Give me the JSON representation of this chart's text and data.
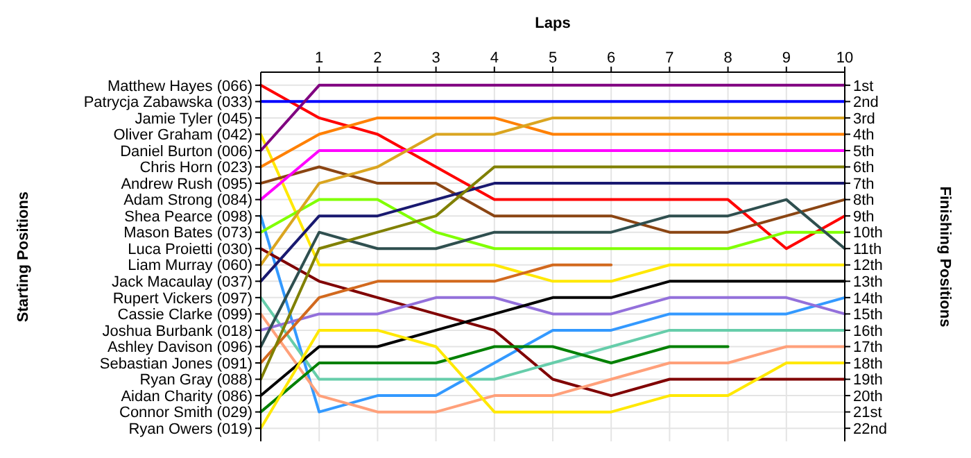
{
  "chart_data": {
    "type": "line",
    "xlabel": "Laps",
    "ylabel": "Finishing Positions",
    "grid": true,
    "x": [
      0,
      1,
      2,
      3,
      4,
      5,
      6,
      7,
      8,
      9,
      10
    ],
    "xlim": [
      0,
      10
    ],
    "xticks": [
      1,
      2,
      3,
      4,
      5,
      6,
      7,
      8,
      9,
      10
    ],
    "ylim": [
      22.8,
      0.2
    ],
    "yticks": [
      {
        "value": 1,
        "label": "1st"
      },
      {
        "value": 2,
        "label": "2nd"
      },
      {
        "value": 3,
        "label": "3rd"
      },
      {
        "value": 4,
        "label": "4th"
      },
      {
        "value": 5,
        "label": "5th"
      },
      {
        "value": 6,
        "label": "6th"
      },
      {
        "value": 7,
        "label": "7th"
      },
      {
        "value": 8,
        "label": "8th"
      },
      {
        "value": 9,
        "label": "9th"
      },
      {
        "value": 10,
        "label": "10th"
      },
      {
        "value": 11,
        "label": "11th"
      },
      {
        "value": 12,
        "label": "12th"
      },
      {
        "value": 13,
        "label": "13th"
      },
      {
        "value": 14,
        "label": "14th"
      },
      {
        "value": 15,
        "label": "15th"
      },
      {
        "value": 16,
        "label": "16th"
      },
      {
        "value": 17,
        "label": "17th"
      },
      {
        "value": 18,
        "label": "18th"
      },
      {
        "value": 19,
        "label": "19th"
      },
      {
        "value": 20,
        "label": "20th"
      },
      {
        "value": 21,
        "label": "21st"
      },
      {
        "value": 22,
        "label": "22nd"
      }
    ],
    "annotations": [
      "Starting Positions",
      "Matthew Hayes (066)",
      "Patrycja Zabawska (033)",
      "Jamie Tyler (045)",
      "Oliver Graham (042)",
      "Daniel Burton (006)",
      "Chris Horn (023)",
      "Andrew Rush (095)",
      "Adam Strong (084)",
      "Shea Pearce (098)",
      "Mason Bates (073)",
      "Luca Proietti (030)",
      "Liam Murray (060)",
      "Jack Macaulay (037)",
      "Rupert Vickers (097)",
      "Cassie Clarke (099)",
      "Joshua Burbank (018)",
      "Ashley Davison (096)",
      "Sebastian Jones (091)",
      "Ryan Gray (088)",
      "Aidan Charity (086)",
      "Connor Smith (029)",
      "Ryan Owers (019)"
    ],
    "series": [
      {
        "color": "#ff0000",
        "values": [
          1,
          3,
          4,
          6,
          8,
          8,
          8,
          8,
          8,
          11,
          9
        ]
      },
      {
        "color": "#0000ff",
        "values": [
          2,
          2,
          2,
          2,
          2,
          2,
          2,
          2,
          2,
          2,
          2
        ]
      },
      {
        "color": "#ffe800",
        "values": [
          4,
          12,
          12,
          12,
          12,
          13,
          13,
          12,
          12,
          12,
          12
        ]
      },
      {
        "color": "#800080",
        "values": [
          5,
          1,
          1,
          1,
          1,
          1,
          1,
          1,
          1,
          1,
          1
        ]
      },
      {
        "color": "#ff8000",
        "values": [
          6,
          4,
          3,
          3,
          3,
          4,
          4,
          4,
          4,
          4,
          4
        ]
      },
      {
        "color": "#8b4513",
        "values": [
          7,
          6,
          7,
          7,
          9,
          9,
          9,
          10,
          10,
          9,
          8
        ]
      },
      {
        "color": "#ff00ff",
        "values": [
          8,
          5,
          5,
          5,
          5,
          5,
          5,
          5,
          5,
          5,
          5
        ]
      },
      {
        "color": "#3399ff",
        "values": [
          9,
          21,
          20,
          20,
          18,
          16,
          16,
          15,
          15,
          15,
          14
        ]
      },
      {
        "color": "#80ff00",
        "values": [
          10,
          8,
          8,
          10,
          11,
          11,
          11,
          11,
          11,
          10,
          10
        ]
      },
      {
        "color": "#800000",
        "values": [
          11,
          13,
          14,
          15,
          16,
          19,
          20,
          19,
          19,
          19,
          19
        ]
      },
      {
        "color": "#daa520",
        "values": [
          12,
          7,
          6,
          4,
          4,
          3,
          3,
          3,
          3,
          3,
          3
        ]
      },
      {
        "color": "#191970",
        "values": [
          13,
          9,
          9,
          8,
          7,
          7,
          7,
          7,
          7,
          7,
          7
        ]
      },
      {
        "color": "#66cdaa",
        "values": [
          14,
          19,
          19,
          19,
          19,
          18,
          17,
          16,
          16,
          16,
          16
        ]
      },
      {
        "color": "#ffa07a",
        "values": [
          15,
          20,
          21,
          21,
          20,
          20,
          19,
          18,
          18,
          17,
          17
        ]
      },
      {
        "color": "#9370db",
        "values": [
          16,
          15,
          15,
          14,
          14,
          15,
          15,
          14,
          14,
          14,
          15
        ]
      },
      {
        "color": "#2f4f4f",
        "values": [
          17,
          10,
          11,
          11,
          10,
          10,
          10,
          9,
          9,
          8,
          11
        ]
      },
      {
        "color": "#d2691e",
        "values": [
          18,
          14,
          13,
          13,
          13,
          12,
          12,
          null,
          null,
          null,
          null
        ]
      },
      {
        "color": "#808000",
        "values": [
          19,
          11,
          10,
          9,
          6,
          6,
          6,
          6,
          6,
          6,
          6
        ]
      },
      {
        "color": "#000000",
        "values": [
          20,
          17,
          17,
          16,
          15,
          14,
          14,
          13,
          13,
          13,
          13
        ]
      },
      {
        "color": "#008000",
        "values": [
          21,
          18,
          18,
          18,
          17,
          17,
          18,
          17,
          17,
          null,
          null
        ]
      },
      {
        "color": "#ffe800",
        "values": [
          22,
          16,
          16,
          17,
          21,
          21,
          21,
          20,
          20,
          18,
          18
        ]
      }
    ]
  }
}
